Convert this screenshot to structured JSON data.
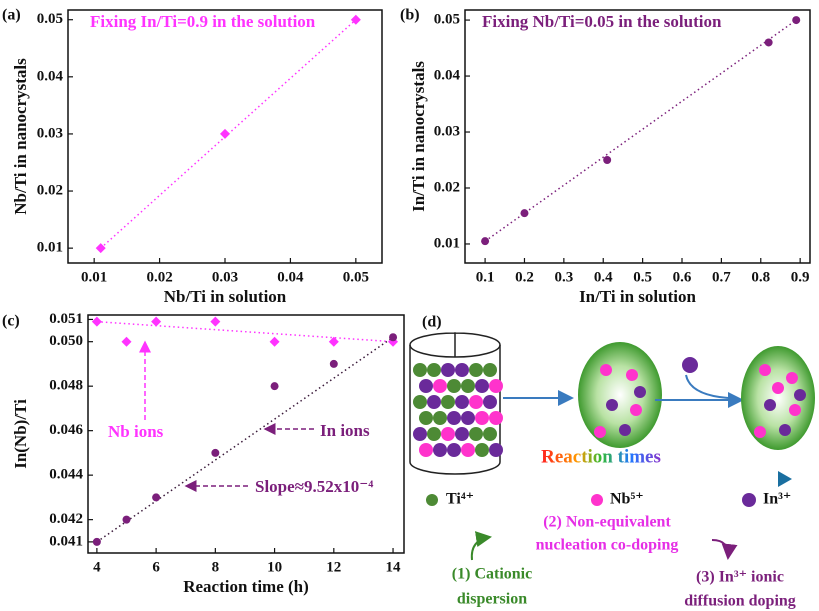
{
  "chart_data": [
    {
      "type": "scatter",
      "label": "(a)",
      "annotation": "Fixing In/Ti=0.9 in the solution",
      "xlabel": "Nb/Ti in solution",
      "ylabel": "Nb/Ti in nanocrystals",
      "x": [
        0.011,
        0.03,
        0.05
      ],
      "values": [
        0.01,
        0.03,
        0.05
      ],
      "color": "#ff33ff",
      "marker": "diamond",
      "xlim": [
        0.006,
        0.054
      ],
      "ylim": [
        0.0074,
        0.0517
      ],
      "xticks": [
        0.01,
        0.02,
        0.03,
        0.04,
        0.05
      ],
      "yticks": [
        0.01,
        0.02,
        0.03,
        0.04,
        0.05
      ]
    },
    {
      "type": "scatter",
      "label": "(b)",
      "annotation": "Fixing Nb/Ti=0.05 in the solution",
      "xlabel": "In/Ti in solution",
      "ylabel": "In/Ti in nanocrystals",
      "x": [
        0.1,
        0.2,
        0.41,
        0.82,
        0.89
      ],
      "values": [
        0.0105,
        0.0155,
        0.025,
        0.046,
        0.05
      ],
      "color": "#7b1f7b",
      "marker": "circle",
      "xlim": [
        0.049,
        0.925
      ],
      "ylim": [
        0.0066,
        0.0518
      ],
      "xticks": [
        0.1,
        0.2,
        0.3,
        0.4,
        0.5,
        0.6,
        0.7,
        0.8,
        0.9
      ],
      "yticks": [
        0.01,
        0.02,
        0.03,
        0.04,
        0.05
      ]
    },
    {
      "type": "scatter",
      "label": "(c)",
      "annotation": "Slope≈9.52x10⁻⁴",
      "xlabel": "Reaction time (h)",
      "ylabel": "In(Nb)/Ti",
      "x": [
        4,
        5,
        6,
        8,
        10,
        12,
        14
      ],
      "series": [
        {
          "name": "Nb ions",
          "color": "#ff33ff",
          "marker": "diamond",
          "values": [
            0.0509,
            0.05,
            0.0509,
            0.0509,
            0.05,
            0.05,
            0.05
          ]
        },
        {
          "name": "In ions",
          "color": "#7b1f7b",
          "marker": "circle",
          "values": [
            0.041,
            0.042,
            0.043,
            0.045,
            0.048,
            0.049,
            0.0502
          ]
        }
      ],
      "xlim": [
        3.7,
        14.37
      ],
      "ylim": [
        0.0405,
        0.0512
      ],
      "xticks": [
        4,
        6,
        8,
        10,
        12,
        14
      ],
      "yticks": [
        0.041,
        0.042,
        0.044,
        0.046,
        0.048,
        {
          "value": 0.05,
          "label": "0.050"
        },
        0.051
      ]
    }
  ],
  "diagram": {
    "label": "(d)",
    "process": "Reaction times",
    "legend": [
      "Ti⁴⁺",
      "Nb⁵⁺",
      "In³⁺"
    ],
    "step2": [
      "(2) Non-equivalent",
      "nucleation co-doping"
    ],
    "step1": [
      "(1) Cationic",
      "dispersion"
    ],
    "step3": [
      "(3) In³⁺ ionic",
      "diffusion doping"
    ]
  }
}
